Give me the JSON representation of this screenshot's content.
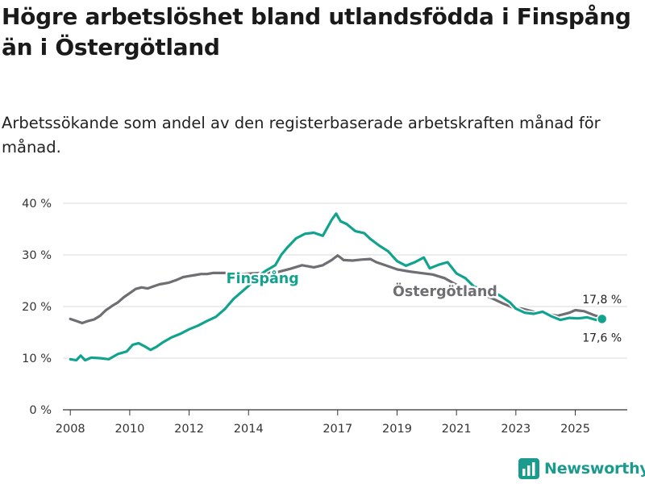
{
  "header": {
    "title": "Högre arbetslöshet bland utlandsfödda i Finspång än i Östergötland",
    "subtitle": "Arbetssökande som andel av den registerbaserade arbetskraften månad för månad."
  },
  "brand": {
    "name": "Newsworthy"
  },
  "colors": {
    "finspang": "#12a38f",
    "ostergotland": "#6e6e73",
    "grid": "#d9d9d9",
    "halo": "#ffffff"
  },
  "chart_data": {
    "type": "line",
    "title": "Högre arbetslöshet bland utlandsfödda i Finspång än i Östergötland",
    "subtitle": "Arbetssökande som andel av den registerbaserade arbetskraften månad för månad.",
    "xlabel": "",
    "ylabel": "",
    "x_range": [
      2007.75,
      2026.75
    ],
    "ylim": [
      0,
      40
    ],
    "y_ticks": [
      0,
      10,
      20,
      30,
      40
    ],
    "y_tick_labels": [
      "0 %",
      "10 %",
      "20 %",
      "30 %",
      "40 %"
    ],
    "x_ticks": [
      2008,
      2010,
      2012,
      2014,
      2017,
      2019,
      2021,
      2023,
      2025
    ],
    "x_tick_labels": [
      "2008",
      "2010",
      "2012",
      "2014",
      "2017",
      "2019",
      "2021",
      "2023",
      "2025"
    ],
    "grid": true,
    "series": [
      {
        "name": "Östergötland",
        "label": "Östergötland",
        "end_label": "17,8 %",
        "end_value": 17.8,
        "points": [
          [
            2008.0,
            17.6
          ],
          [
            2008.2,
            17.2
          ],
          [
            2008.4,
            16.8
          ],
          [
            2008.6,
            17.2
          ],
          [
            2008.8,
            17.5
          ],
          [
            2009.0,
            18.2
          ],
          [
            2009.2,
            19.3
          ],
          [
            2009.4,
            20.1
          ],
          [
            2009.6,
            20.8
          ],
          [
            2009.8,
            21.8
          ],
          [
            2010.0,
            22.6
          ],
          [
            2010.2,
            23.4
          ],
          [
            2010.4,
            23.7
          ],
          [
            2010.6,
            23.5
          ],
          [
            2010.8,
            23.9
          ],
          [
            2011.0,
            24.3
          ],
          [
            2011.3,
            24.6
          ],
          [
            2011.6,
            25.2
          ],
          [
            2011.8,
            25.7
          ],
          [
            2012.0,
            25.9
          ],
          [
            2012.2,
            26.1
          ],
          [
            2012.4,
            26.3
          ],
          [
            2012.6,
            26.3
          ],
          [
            2012.8,
            26.5
          ],
          [
            2013.2,
            26.5
          ],
          [
            2013.8,
            26.3
          ],
          [
            2014.4,
            26.5
          ],
          [
            2015.0,
            26.7
          ],
          [
            2015.4,
            27.3
          ],
          [
            2015.8,
            28.0
          ],
          [
            2016.2,
            27.6
          ],
          [
            2016.5,
            28.0
          ],
          [
            2016.8,
            29.0
          ],
          [
            2017.0,
            29.9
          ],
          [
            2017.2,
            29.0
          ],
          [
            2017.5,
            28.9
          ],
          [
            2017.8,
            29.1
          ],
          [
            2018.1,
            29.2
          ],
          [
            2018.3,
            28.6
          ],
          [
            2018.6,
            28.0
          ],
          [
            2019.0,
            27.2
          ],
          [
            2019.4,
            26.8
          ],
          [
            2019.8,
            26.5
          ],
          [
            2020.2,
            26.2
          ],
          [
            2020.6,
            25.5
          ],
          [
            2021.0,
            24.2
          ],
          [
            2021.4,
            23.2
          ],
          [
            2021.8,
            22.5
          ],
          [
            2022.2,
            21.6
          ],
          [
            2022.6,
            20.5
          ],
          [
            2022.9,
            19.8
          ],
          [
            2023.2,
            19.6
          ],
          [
            2023.6,
            19.0
          ],
          [
            2024.0,
            18.6
          ],
          [
            2024.4,
            18.2
          ],
          [
            2024.8,
            18.8
          ],
          [
            2025.0,
            19.3
          ],
          [
            2025.3,
            19.1
          ],
          [
            2025.6,
            18.4
          ],
          [
            2025.9,
            17.8
          ]
        ]
      },
      {
        "name": "Finspång",
        "label": "Finspång",
        "end_label": "17,6 %",
        "end_value": 17.6,
        "points": [
          [
            2008.0,
            9.8
          ],
          [
            2008.2,
            9.6
          ],
          [
            2008.35,
            10.5
          ],
          [
            2008.5,
            9.6
          ],
          [
            2008.7,
            10.1
          ],
          [
            2009.0,
            10.0
          ],
          [
            2009.3,
            9.8
          ],
          [
            2009.6,
            10.8
          ],
          [
            2009.9,
            11.3
          ],
          [
            2010.1,
            12.6
          ],
          [
            2010.3,
            12.9
          ],
          [
            2010.5,
            12.3
          ],
          [
            2010.7,
            11.6
          ],
          [
            2010.9,
            12.2
          ],
          [
            2011.1,
            13.0
          ],
          [
            2011.4,
            14.0
          ],
          [
            2011.7,
            14.7
          ],
          [
            2012.0,
            15.6
          ],
          [
            2012.3,
            16.3
          ],
          [
            2012.6,
            17.2
          ],
          [
            2012.9,
            18.0
          ],
          [
            2013.2,
            19.5
          ],
          [
            2013.5,
            21.5
          ],
          [
            2013.8,
            23.0
          ],
          [
            2014.0,
            24.0
          ],
          [
            2014.3,
            25.8
          ],
          [
            2014.6,
            27.0
          ],
          [
            2014.9,
            28.0
          ],
          [
            2015.1,
            30.0
          ],
          [
            2015.3,
            31.4
          ],
          [
            2015.6,
            33.2
          ],
          [
            2015.9,
            34.1
          ],
          [
            2016.2,
            34.3
          ],
          [
            2016.5,
            33.7
          ],
          [
            2016.8,
            36.8
          ],
          [
            2016.95,
            38.0
          ],
          [
            2017.1,
            36.5
          ],
          [
            2017.3,
            36.0
          ],
          [
            2017.6,
            34.6
          ],
          [
            2017.9,
            34.2
          ],
          [
            2018.1,
            33.1
          ],
          [
            2018.4,
            31.8
          ],
          [
            2018.7,
            30.7
          ],
          [
            2019.0,
            28.8
          ],
          [
            2019.3,
            27.9
          ],
          [
            2019.6,
            28.6
          ],
          [
            2019.9,
            29.5
          ],
          [
            2020.1,
            27.4
          ],
          [
            2020.4,
            28.1
          ],
          [
            2020.7,
            28.6
          ],
          [
            2021.0,
            26.4
          ],
          [
            2021.3,
            25.5
          ],
          [
            2021.6,
            23.8
          ],
          [
            2021.9,
            23.5
          ],
          [
            2022.2,
            23.0
          ],
          [
            2022.5,
            22.0
          ],
          [
            2022.8,
            20.8
          ],
          [
            2023.0,
            19.6
          ],
          [
            2023.3,
            18.8
          ],
          [
            2023.6,
            18.6
          ],
          [
            2023.9,
            19.0
          ],
          [
            2024.2,
            18.1
          ],
          [
            2024.5,
            17.4
          ],
          [
            2024.8,
            17.8
          ],
          [
            2025.1,
            17.7
          ],
          [
            2025.4,
            17.9
          ],
          [
            2025.7,
            17.4
          ],
          [
            2025.9,
            17.6
          ]
        ]
      }
    ]
  }
}
